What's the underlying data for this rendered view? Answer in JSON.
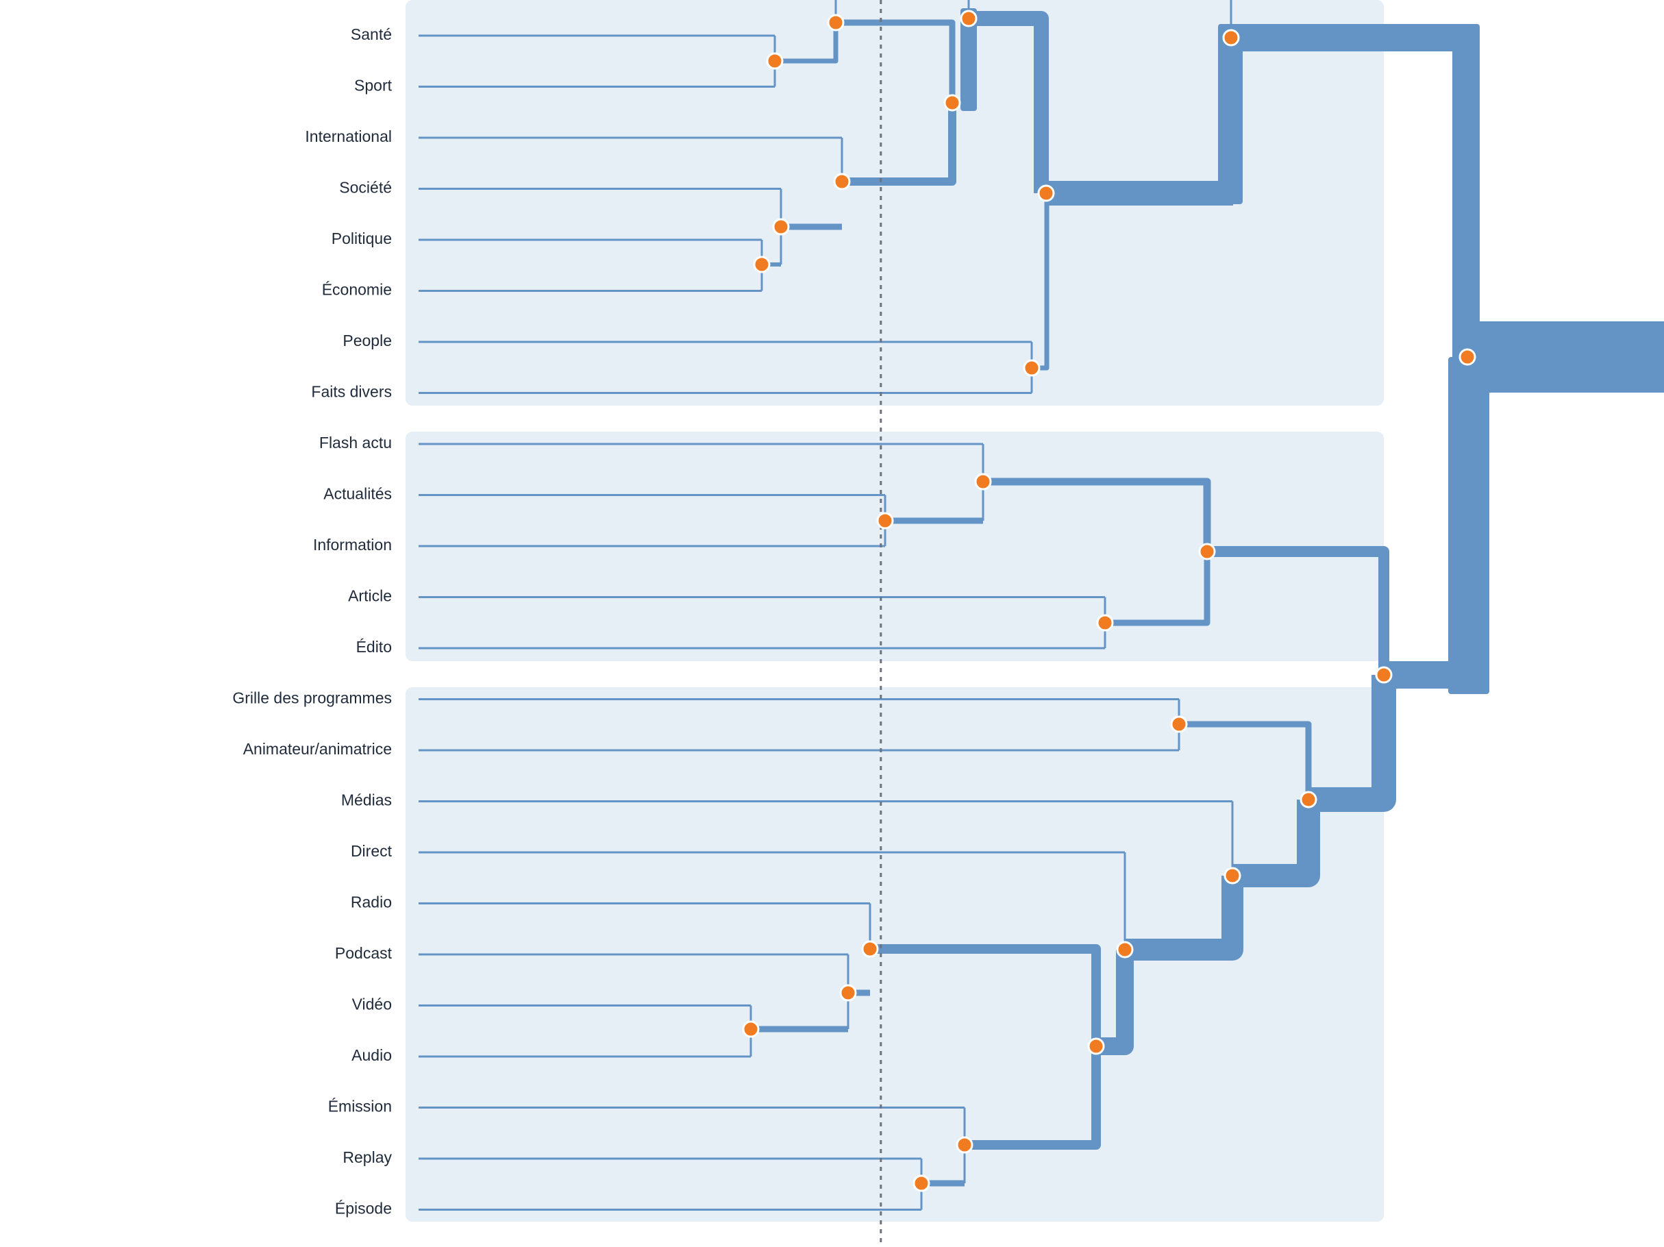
{
  "chart_data": {
    "type": "dendrogram",
    "orientation": "right-to-left",
    "leaves": [
      "Santé",
      "Sport",
      "International",
      "Société",
      "Politique",
      "Économie",
      "People",
      "Faits divers",
      "Flash actu",
      "Actualités",
      "Information",
      "Article",
      "Édito",
      "Grille des programmes",
      "Animateur/animatrice",
      "Médias",
      "Direct",
      "Radio",
      "Podcast",
      "Vidéo",
      "Audio",
      "Émission",
      "Replay",
      "Épisode"
    ],
    "clusters": [
      {
        "name": "",
        "leaves": [
          0,
          7
        ]
      },
      {
        "name": "",
        "leaves": [
          8,
          12
        ]
      },
      {
        "name": "",
        "leaves": [
          13,
          23
        ]
      }
    ],
    "merges": [
      {
        "id": "m_sante_sport",
        "children": [
          "L0",
          "L1"
        ],
        "height": 0.4225
      },
      {
        "id": "m_top_upper",
        "children": [
          "m_sante_sport",
          "L_above"
        ],
        "height": 0.4925
      },
      {
        "id": "m_pol_eco",
        "children": [
          "L4",
          "L5"
        ],
        "height": 0.4138
      },
      {
        "id": "m_soc_pe",
        "children": [
          "L3",
          "m_pol_eco"
        ],
        "height": 0.4256
      },
      {
        "id": "m_int_soc",
        "children": [
          "L2",
          "m_soc_pe"
        ],
        "height": 0.4946
      },
      {
        "id": "m_a1",
        "children": [
          "m_top_upper",
          "m_int_soc"
        ],
        "height": 0.5565
      },
      {
        "id": "m_a2",
        "children": [
          "m_a1",
          "L_above2"
        ],
        "height": 0.5686
      },
      {
        "id": "m_people_fd",
        "children": [
          "L6",
          "L7"
        ],
        "height": 0.6123
      },
      {
        "id": "m_news",
        "children": [
          "m_a2",
          "m_people_fd"
        ],
        "height": 0.6225
      },
      {
        "id": "m_news_top",
        "children": [
          "m_news",
          "L_above3"
        ],
        "height": 0.7402
      },
      {
        "id": "m_act_info",
        "children": [
          "L9",
          "L10"
        ],
        "height": 0.5288
      },
      {
        "id": "m_flash",
        "children": [
          "L8",
          "m_act_info"
        ],
        "height": 0.5877
      },
      {
        "id": "m_art_edito",
        "children": [
          "L11",
          "L12"
        ],
        "height": 0.6622
      },
      {
        "id": "m_b",
        "children": [
          "m_flash",
          "m_art_edito"
        ],
        "height": 0.7232
      },
      {
        "id": "m_grille_anim",
        "children": [
          "L13",
          "L14"
        ],
        "height": 0.7066
      },
      {
        "id": "m_video_audio",
        "children": [
          "L19",
          "L20"
        ],
        "height": 0.4483
      },
      {
        "id": "m_podcast_va",
        "children": [
          "L18",
          "m_video_audio"
        ],
        "height": 0.508
      },
      {
        "id": "m_radio_pva",
        "children": [
          "L17",
          "m_podcast_va"
        ],
        "height": 0.5208
      },
      {
        "id": "m_replay_ep",
        "children": [
          "L22",
          "L23"
        ],
        "height": 0.5513
      },
      {
        "id": "m_emis_re",
        "children": [
          "L21",
          "m_replay_ep"
        ],
        "height": 0.5763
      },
      {
        "id": "m_media_sub",
        "children": [
          "m_radio_pva",
          "m_emis_re"
        ],
        "height": 0.6577
      },
      {
        "id": "m_direct",
        "children": [
          "L16",
          "m_media_sub"
        ],
        "height": 0.6728
      },
      {
        "id": "m_medias",
        "children": [
          "L15",
          "m_direct"
        ],
        "height": 0.7376
      },
      {
        "id": "m_c",
        "children": [
          "m_grille_anim",
          "m_medias"
        ],
        "height": 0.7842
      },
      {
        "id": "m_bc",
        "children": [
          "m_b",
          "m_c"
        ],
        "height": 0.8288
      },
      {
        "id": "m_root",
        "children": [
          "m_news_top",
          "m_bc"
        ],
        "height": 0.8784
      }
    ],
    "cut_threshold": 0.8271,
    "colors": {
      "link": "#6494c6",
      "node": "#f07b20",
      "node_stroke": "#ffffff",
      "cluster_bg": "#e6eef6",
      "cut_line": "#6b7280",
      "label": "#1f2a3a"
    }
  }
}
